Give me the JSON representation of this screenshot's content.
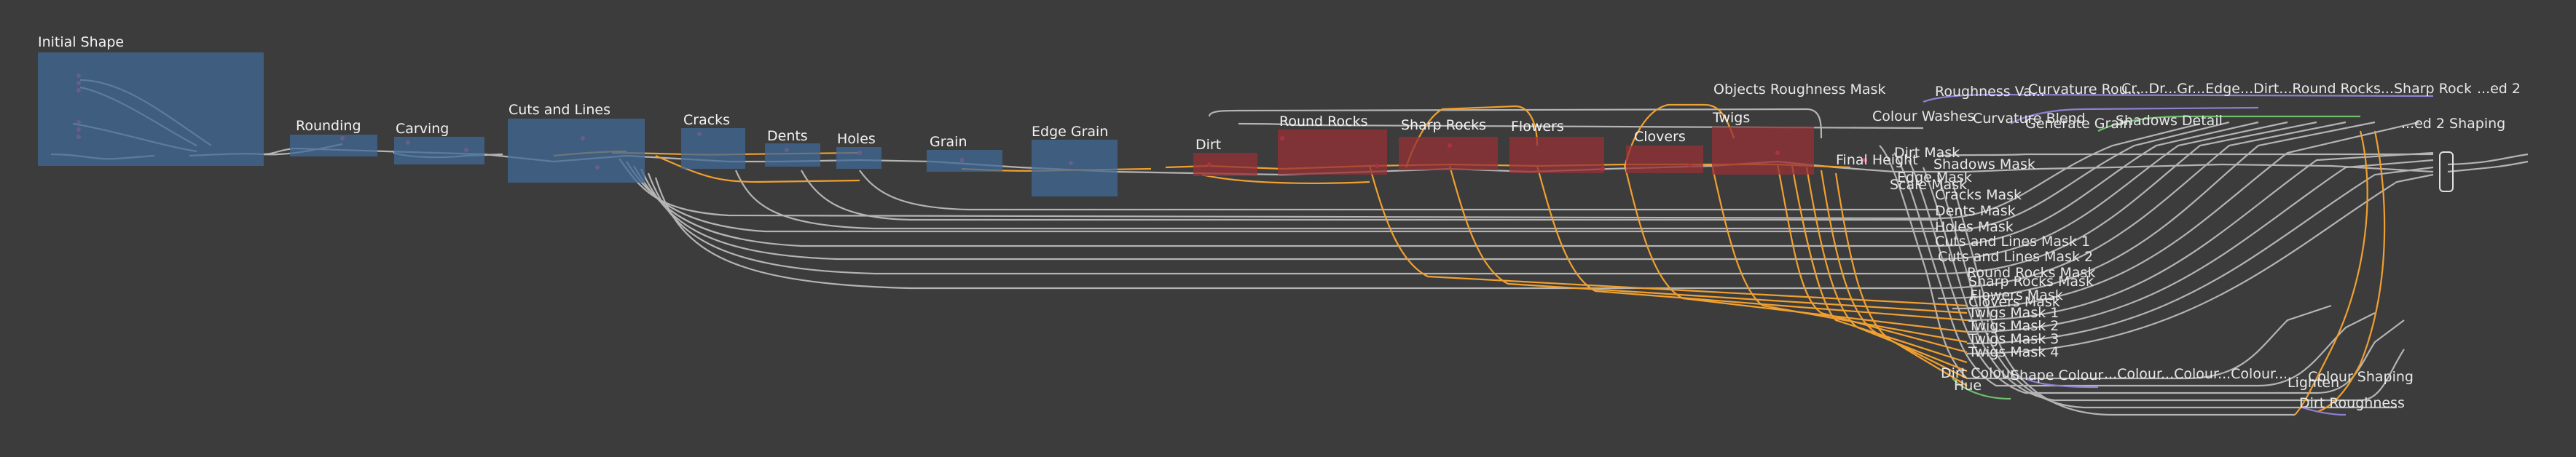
{
  "frames": [
    {
      "id": "initial-shape",
      "label": "Initial Shape",
      "color": "blue"
    },
    {
      "id": "rounding",
      "label": "Rounding",
      "color": "blue"
    },
    {
      "id": "carving",
      "label": "Carving",
      "color": "blue"
    },
    {
      "id": "cuts-and-lines",
      "label": "Cuts and Lines",
      "color": "blue"
    },
    {
      "id": "cracks",
      "label": "Cracks",
      "color": "blue"
    },
    {
      "id": "dents",
      "label": "Dents",
      "color": "blue"
    },
    {
      "id": "holes",
      "label": "Holes",
      "color": "blue"
    },
    {
      "id": "grain",
      "label": "Grain",
      "color": "blue"
    },
    {
      "id": "edge-grain",
      "label": "Edge Grain",
      "color": "blue"
    },
    {
      "id": "dirt",
      "label": "Dirt",
      "color": "red"
    },
    {
      "id": "round-rocks",
      "label": "Round Rocks",
      "color": "red"
    },
    {
      "id": "sharp-rocks",
      "label": "Sharp Rocks",
      "color": "red"
    },
    {
      "id": "flowers",
      "label": "Flowers",
      "color": "red"
    },
    {
      "id": "clovers",
      "label": "Clovers",
      "color": "red"
    },
    {
      "id": "twigs",
      "label": "Twigs",
      "color": "red"
    }
  ],
  "labels": [
    {
      "id": "objects-roughness-mask",
      "text": "Objects Roughness Mask"
    },
    {
      "id": "roughness-variation",
      "text": "Roughness Va..."
    },
    {
      "id": "curvature-rou",
      "text": "Curvature Rou..."
    },
    {
      "id": "colour-washes",
      "text": "Colour Washes"
    },
    {
      "id": "curvature-blend",
      "text": "Curvature Blend"
    },
    {
      "id": "general-grain",
      "text": "Generate Grain"
    },
    {
      "id": "shadows-detail",
      "text": "Shadows Detail"
    },
    {
      "id": "top-labels-row",
      "text": "Cr...Dr...Gr...Edge...Dirt...Round Rocks...Sharp Rocks...Flowers...Clovers...Twigs Roughness"
    },
    {
      "id": "pred-2",
      "text": "...ed 2"
    },
    {
      "id": "shaping-2",
      "text": "...ed 2 Shaping"
    },
    {
      "id": "final-height",
      "text": "Final Height"
    },
    {
      "id": "shadows-mask",
      "text": "Shadows Mask"
    },
    {
      "id": "dirt-mask",
      "text": "Dirt Mask"
    },
    {
      "id": "scale-mask",
      "text": "Scale Mask"
    },
    {
      "id": "edge-mask",
      "text": "Edge Mask"
    },
    {
      "id": "cracks-mask",
      "text": "Cracks Mask"
    },
    {
      "id": "dents-mask",
      "text": "Dents Mask"
    },
    {
      "id": "holes-mask",
      "text": "Holes Mask"
    },
    {
      "id": "cuts-and-lines-mask-1",
      "text": "Cuts and Lines Mask 1"
    },
    {
      "id": "cuts-and-lines-mask-2",
      "text": "Cuts and Lines Mask 2"
    },
    {
      "id": "round-rocks-mask",
      "text": "Round Rocks Mask"
    },
    {
      "id": "sharp-rocks-mask",
      "text": "Sharp Rocks Mask"
    },
    {
      "id": "flowers-mask",
      "text": "Flowers Mask"
    },
    {
      "id": "clovers-mask",
      "text": "Clovers Mask"
    },
    {
      "id": "twigs-mask-1",
      "text": "Twigs Mask 1"
    },
    {
      "id": "twigs-mask-2",
      "text": "Twigs Mask 2"
    },
    {
      "id": "twigs-mask-3",
      "text": "Twigs Mask 3"
    },
    {
      "id": "twigs-mask-4",
      "text": "Twigs Mask 4"
    },
    {
      "id": "dirt-colour",
      "text": "Dirt Colour"
    },
    {
      "id": "hue",
      "text": "Hue"
    },
    {
      "id": "shape-colour",
      "text": "Shape Colour"
    },
    {
      "id": "bottom-labels-row",
      "text": "...Colour...Colour...Colour...Colour...Colour 2"
    },
    {
      "id": "colour-shaping",
      "text": "...Colour Shaping"
    },
    {
      "id": "lighten",
      "text": "Lighten"
    },
    {
      "id": "dirt-roughness",
      "text": "Dirt Roughness"
    }
  ],
  "colors": {
    "background": "#3c3c3c",
    "frame_blue": "#406896",
    "frame_red": "#963034",
    "wire_grey": "#b4b4b4",
    "wire_orange": "#f0a030",
    "wire_purple": "#9080d0",
    "wire_green": "#70c070",
    "label": "#f2f2f2"
  }
}
